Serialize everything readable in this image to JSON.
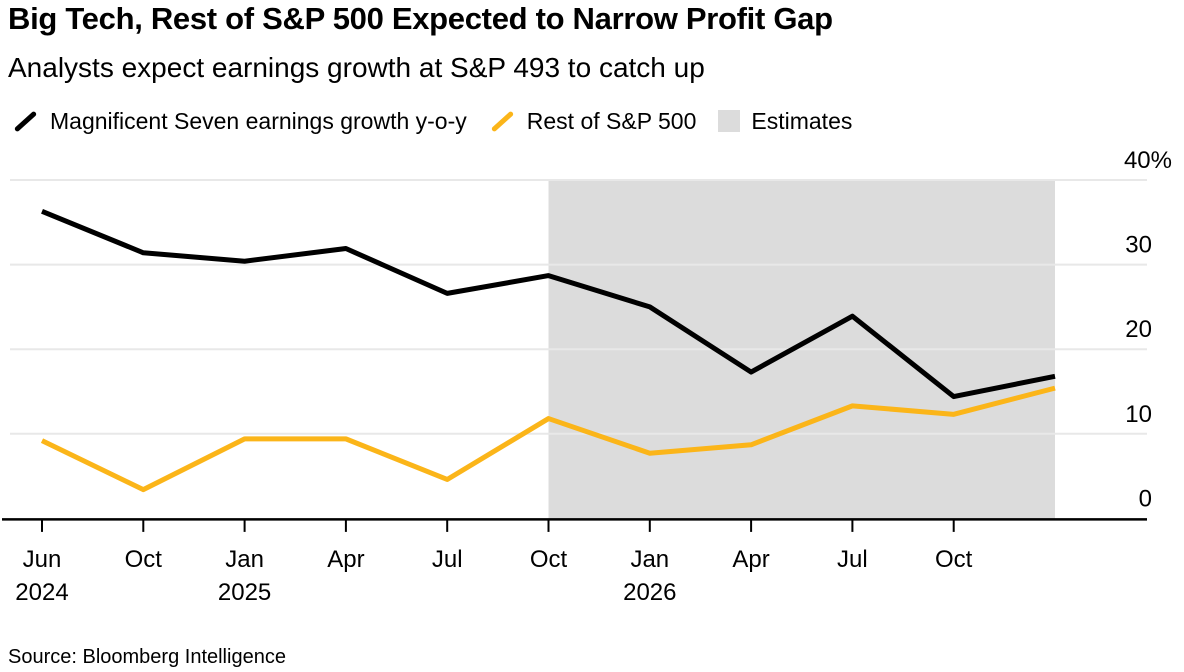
{
  "header": {
    "title": "Big Tech, Rest of S&P 500 Expected to Narrow Profit Gap",
    "subtitle": "Analysts expect earnings growth at S&P 493 to catch up"
  },
  "legend": {
    "items": [
      {
        "label": "Magnificent Seven earnings growth y-o-y",
        "swatch": "line",
        "color": "#000000"
      },
      {
        "label": "Rest of S&P 500",
        "swatch": "line",
        "color": "#FBB519"
      },
      {
        "label": "Estimates",
        "swatch": "box",
        "color": "#DCDCDC"
      }
    ]
  },
  "source": "Source: Bloomberg Intelligence",
  "chart_data": {
    "type": "line",
    "title": "Big Tech, Rest of S&P 500 Expected to Narrow Profit Gap",
    "subtitle": "Analysts expect earnings growth at S&P 493 to catch up",
    "categories": [
      {
        "label": "Jun",
        "year": "2024"
      },
      {
        "label": "Oct",
        "year": ""
      },
      {
        "label": "Jan",
        "year": "2025"
      },
      {
        "label": "Apr",
        "year": ""
      },
      {
        "label": "Jul",
        "year": ""
      },
      {
        "label": "Oct",
        "year": ""
      },
      {
        "label": "Jan",
        "year": "2026"
      },
      {
        "label": "Apr",
        "year": ""
      },
      {
        "label": "Jul",
        "year": ""
      },
      {
        "label": "Oct",
        "year": ""
      },
      {
        "label": "",
        "year": ""
      }
    ],
    "series": [
      {
        "name": "Magnificent Seven earnings growth y-o-y",
        "color": "#000000",
        "values": [
          36.3,
          31.4,
          30.4,
          31.9,
          26.6,
          28.7,
          25.0,
          17.3,
          23.9,
          14.4,
          16.8
        ]
      },
      {
        "name": "Rest of S&P 500",
        "color": "#FBB519",
        "values": [
          9.2,
          3.4,
          9.4,
          9.4,
          4.6,
          11.8,
          7.7,
          8.7,
          13.3,
          12.3,
          15.4
        ]
      }
    ],
    "estimates": {
      "label": "Estimates",
      "start_index": 5,
      "end_index": 10,
      "fill": "#DCDCDC"
    },
    "y_axis": {
      "ticks": [
        0,
        10,
        20,
        30,
        40
      ],
      "top_label": "40%",
      "unit": "%",
      "ylim": [
        0,
        40
      ],
      "grid": true,
      "gridline_color": "#E8E8E8",
      "axis_color": "#000000",
      "labels_position": "right"
    },
    "legend_position": "top"
  }
}
